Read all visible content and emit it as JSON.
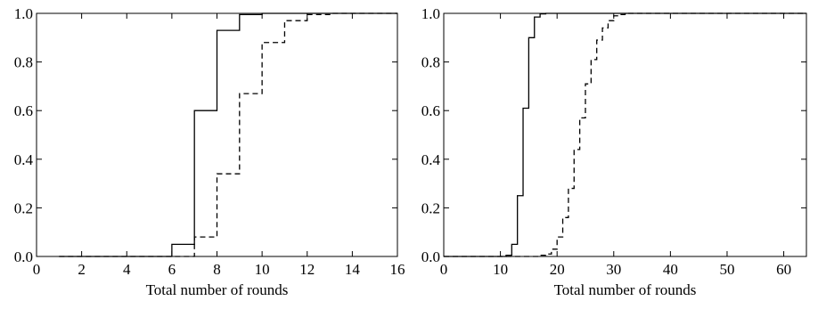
{
  "chart_data": [
    {
      "type": "line",
      "step": true,
      "xlabel": "Total number of rounds",
      "ylabel": "",
      "xlim": [
        0,
        16
      ],
      "ylim": [
        0,
        1
      ],
      "xticks": [
        "0",
        "2",
        "4",
        "6",
        "8",
        "10",
        "12",
        "14",
        "16"
      ],
      "yticks": [
        "0.0",
        "0.2",
        "0.4",
        "0.6",
        "0.8",
        "1.0"
      ],
      "grid": false,
      "series": [
        {
          "line_style": "solid",
          "x": [
            1,
            6,
            7,
            8,
            9,
            10,
            16
          ],
          "y": [
            0,
            0.05,
            0.6,
            0.93,
            0.995,
            1.0,
            1.0
          ]
        },
        {
          "line_style": "dashed",
          "x": [
            1,
            7,
            8,
            9,
            10,
            11,
            12,
            13,
            16
          ],
          "y": [
            0,
            0.08,
            0.34,
            0.67,
            0.88,
            0.97,
            0.995,
            1.0,
            1.0
          ]
        }
      ]
    },
    {
      "type": "line",
      "step": true,
      "xlabel": "Total number of rounds",
      "ylabel": "",
      "xlim": [
        0,
        64
      ],
      "ylim": [
        0,
        1
      ],
      "xticks": [
        "0",
        "10",
        "20",
        "30",
        "40",
        "50",
        "60"
      ],
      "yticks": [
        "0.0",
        "0.2",
        "0.4",
        "0.6",
        "0.8",
        "1.0"
      ],
      "grid": false,
      "series": [
        {
          "line_style": "solid",
          "x": [
            0,
            10,
            11,
            12,
            13,
            14,
            15,
            16,
            17,
            18,
            64
          ],
          "y": [
            0,
            0,
            0.005,
            0.05,
            0.25,
            0.61,
            0.9,
            0.985,
            0.998,
            1.0,
            1.0
          ]
        },
        {
          "line_style": "dashed",
          "x": [
            0,
            16,
            17,
            18,
            19,
            20,
            21,
            22,
            23,
            24,
            25,
            26,
            27,
            28,
            29,
            30,
            31,
            32,
            64
          ],
          "y": [
            0,
            0,
            0.005,
            0.01,
            0.03,
            0.08,
            0.16,
            0.28,
            0.44,
            0.57,
            0.71,
            0.81,
            0.89,
            0.94,
            0.97,
            0.99,
            0.995,
            1.0,
            1.0
          ]
        }
      ]
    }
  ]
}
